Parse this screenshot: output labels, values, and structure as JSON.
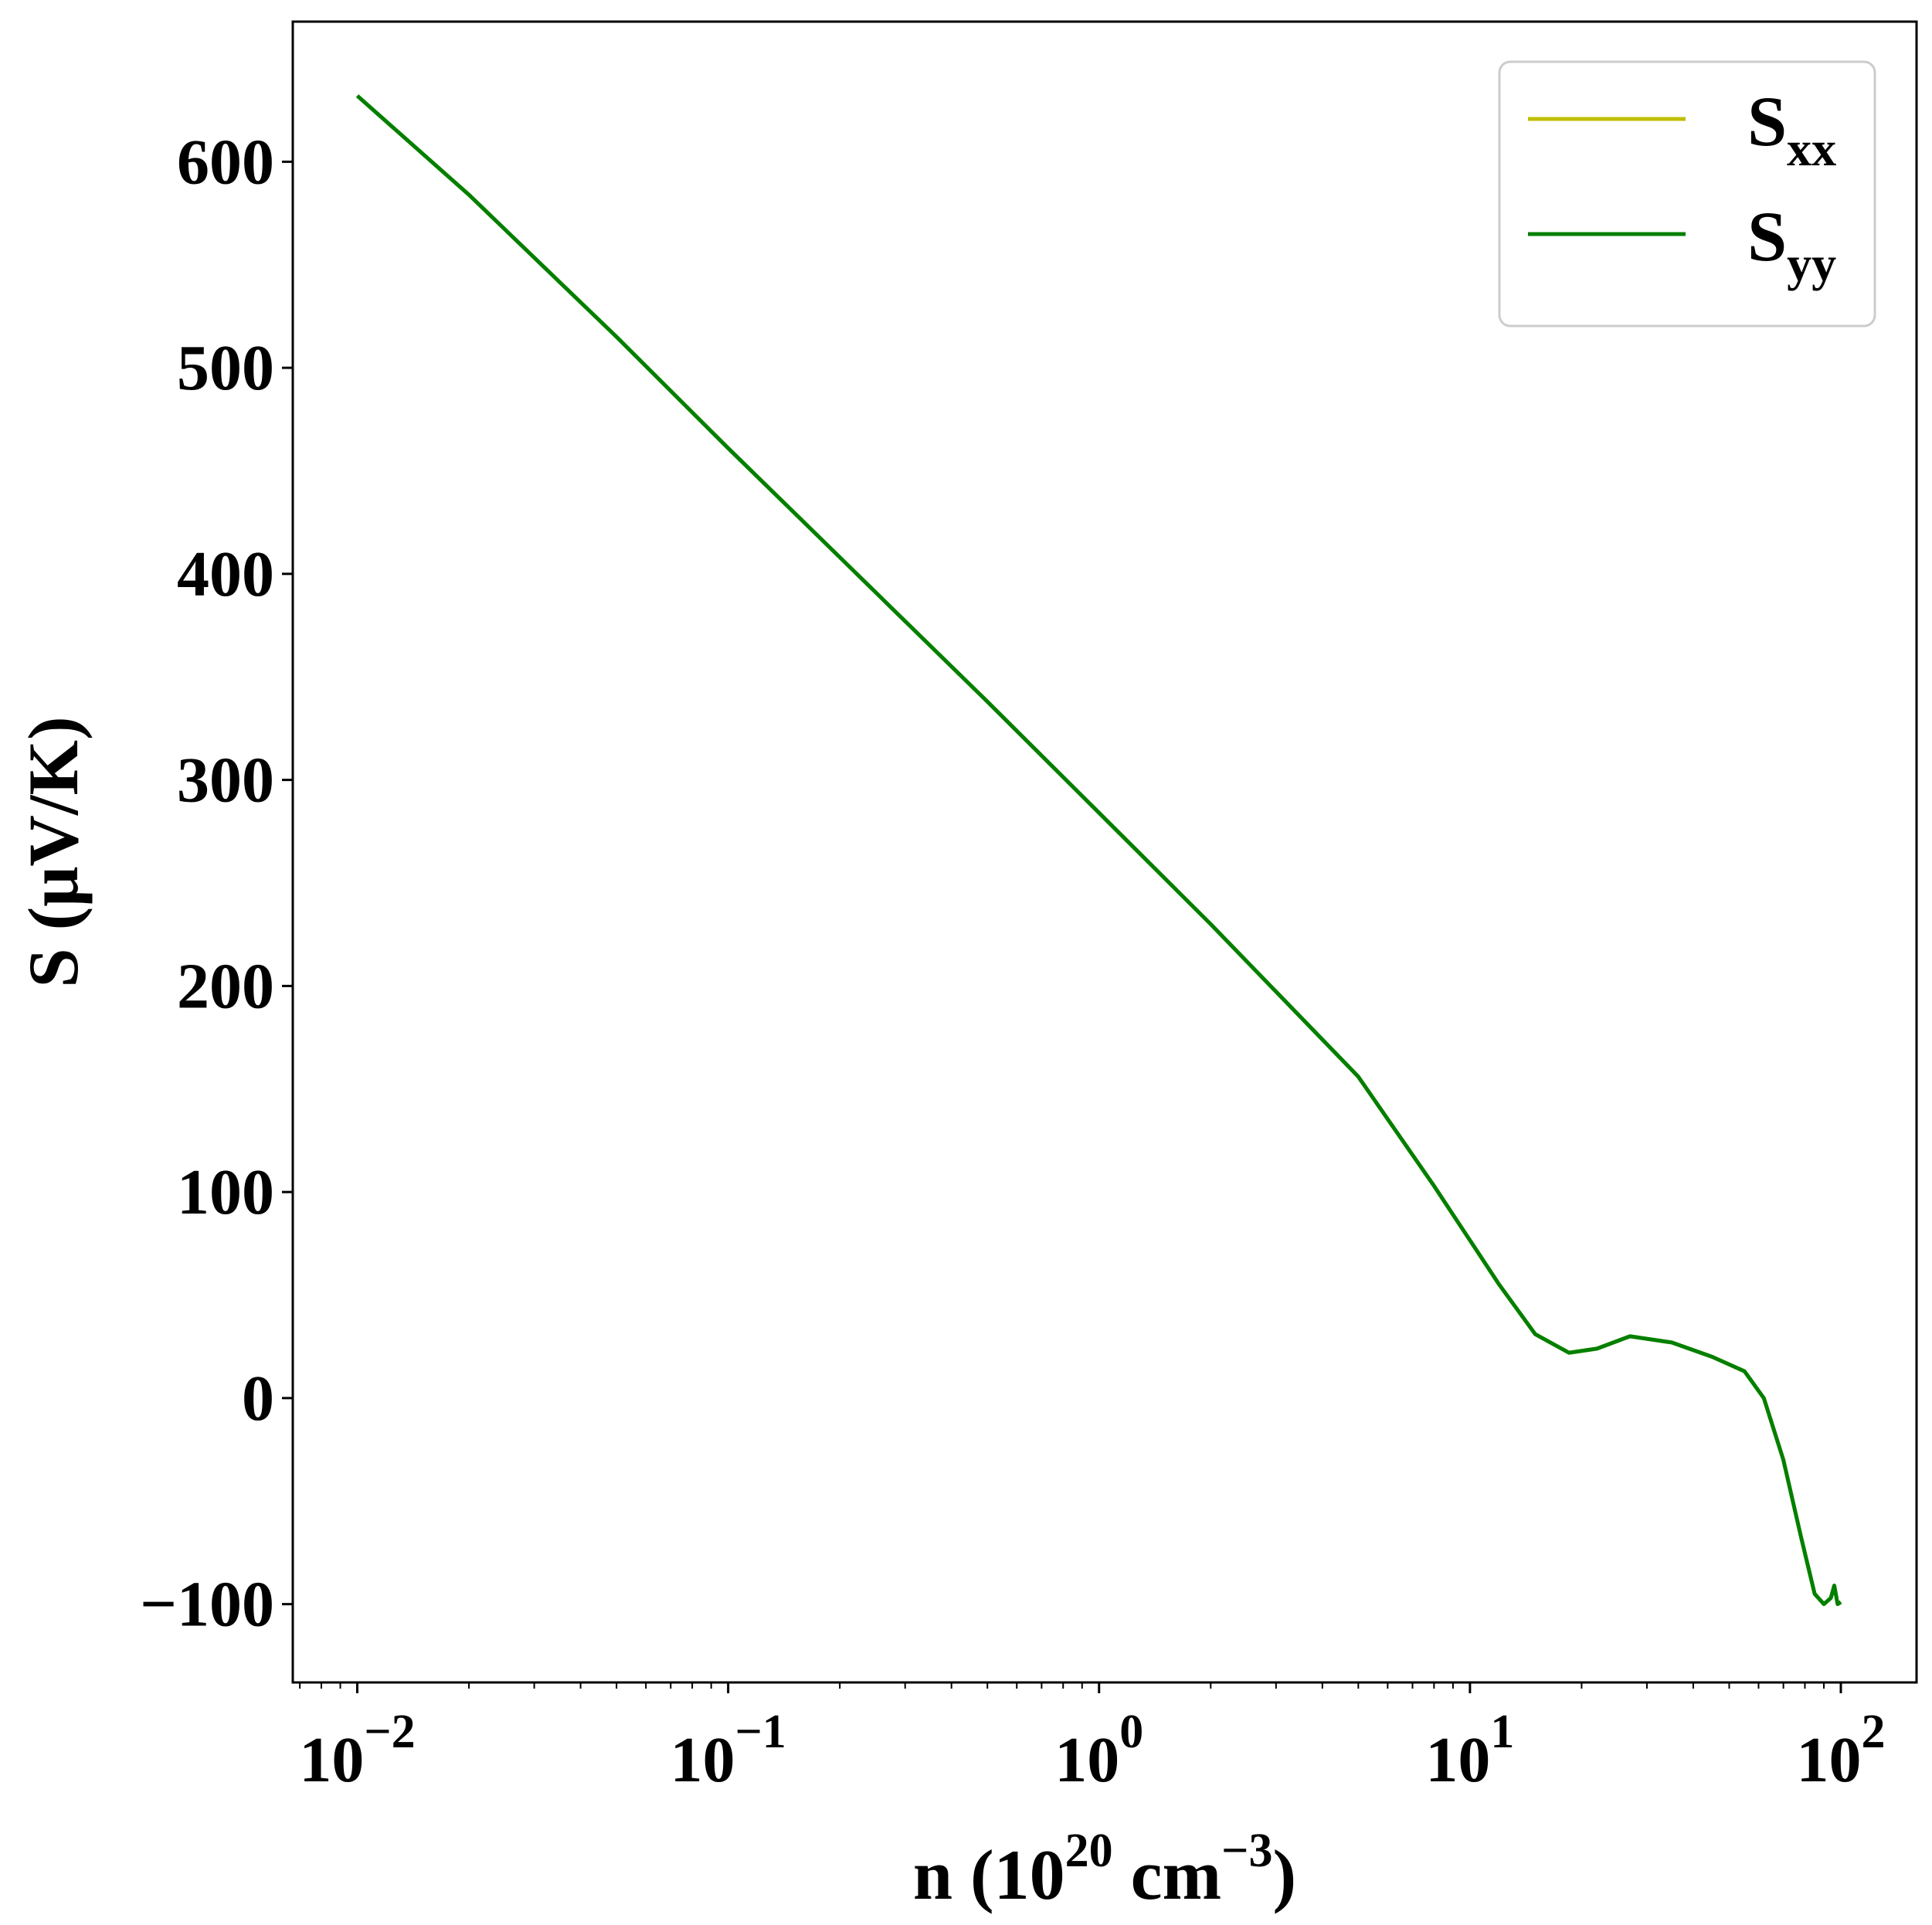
{
  "chart_data": {
    "type": "line",
    "x_scale": "log",
    "xlabel": {
      "base": "n (10",
      "sup1": "20",
      "mid": " cm",
      "sup2": "−3",
      "end": ")"
    },
    "ylabel": "S (μV/K)",
    "xlim": [
      0.0067,
      160
    ],
    "ylim": [
      -138,
      668
    ],
    "x_ticks": [
      {
        "value": 0.01,
        "base": "10",
        "exp": "−2"
      },
      {
        "value": 0.1,
        "base": "10",
        "exp": "−1"
      },
      {
        "value": 1,
        "base": "10",
        "exp": "0"
      },
      {
        "value": 10,
        "base": "10",
        "exp": "1"
      },
      {
        "value": 100,
        "base": "10",
        "exp": "2"
      }
    ],
    "y_ticks": [
      {
        "value": 600,
        "label": "600"
      },
      {
        "value": 500,
        "label": "500"
      },
      {
        "value": 400,
        "label": "400"
      },
      {
        "value": 300,
        "label": "300"
      },
      {
        "value": 200,
        "label": "200"
      },
      {
        "value": 100,
        "label": "100"
      },
      {
        "value": 0,
        "label": "0"
      },
      {
        "value": -100,
        "label": "−100"
      }
    ],
    "grid": false,
    "legend_position": "top-right",
    "series": [
      {
        "name_base": "S",
        "name_sub": "xx",
        "color": "#bfbf00",
        "x": [
          0.01,
          0.02,
          0.05,
          0.1,
          0.2,
          0.5,
          1,
          2,
          5,
          8,
          12,
          15,
          18.5,
          22,
          27,
          35,
          45,
          55,
          62,
          70,
          78,
          85,
          90,
          94,
          96,
          98,
          100
        ],
        "y": [
          632,
          584,
          515,
          461,
          408,
          338,
          284,
          230,
          156,
          103,
          55,
          31,
          22,
          24,
          30,
          27,
          20,
          13,
          0,
          -30,
          -67,
          -95,
          -100,
          -97,
          -91,
          -100,
          -99
        ]
      },
      {
        "name_base": "S",
        "name_sub": "yy",
        "color": "#007f00",
        "x": [
          0.01,
          0.02,
          0.05,
          0.1,
          0.2,
          0.5,
          1,
          2,
          5,
          8,
          12,
          15,
          18.5,
          22,
          27,
          35,
          45,
          55,
          62,
          70,
          78,
          85,
          90,
          94,
          96,
          98,
          100
        ],
        "y": [
          632,
          584,
          515,
          461,
          408,
          338,
          284,
          230,
          156,
          103,
          55,
          31,
          22,
          24,
          30,
          27,
          20,
          13,
          0,
          -30,
          -67,
          -95,
          -100,
          -97,
          -91,
          -100,
          -99
        ]
      }
    ]
  }
}
